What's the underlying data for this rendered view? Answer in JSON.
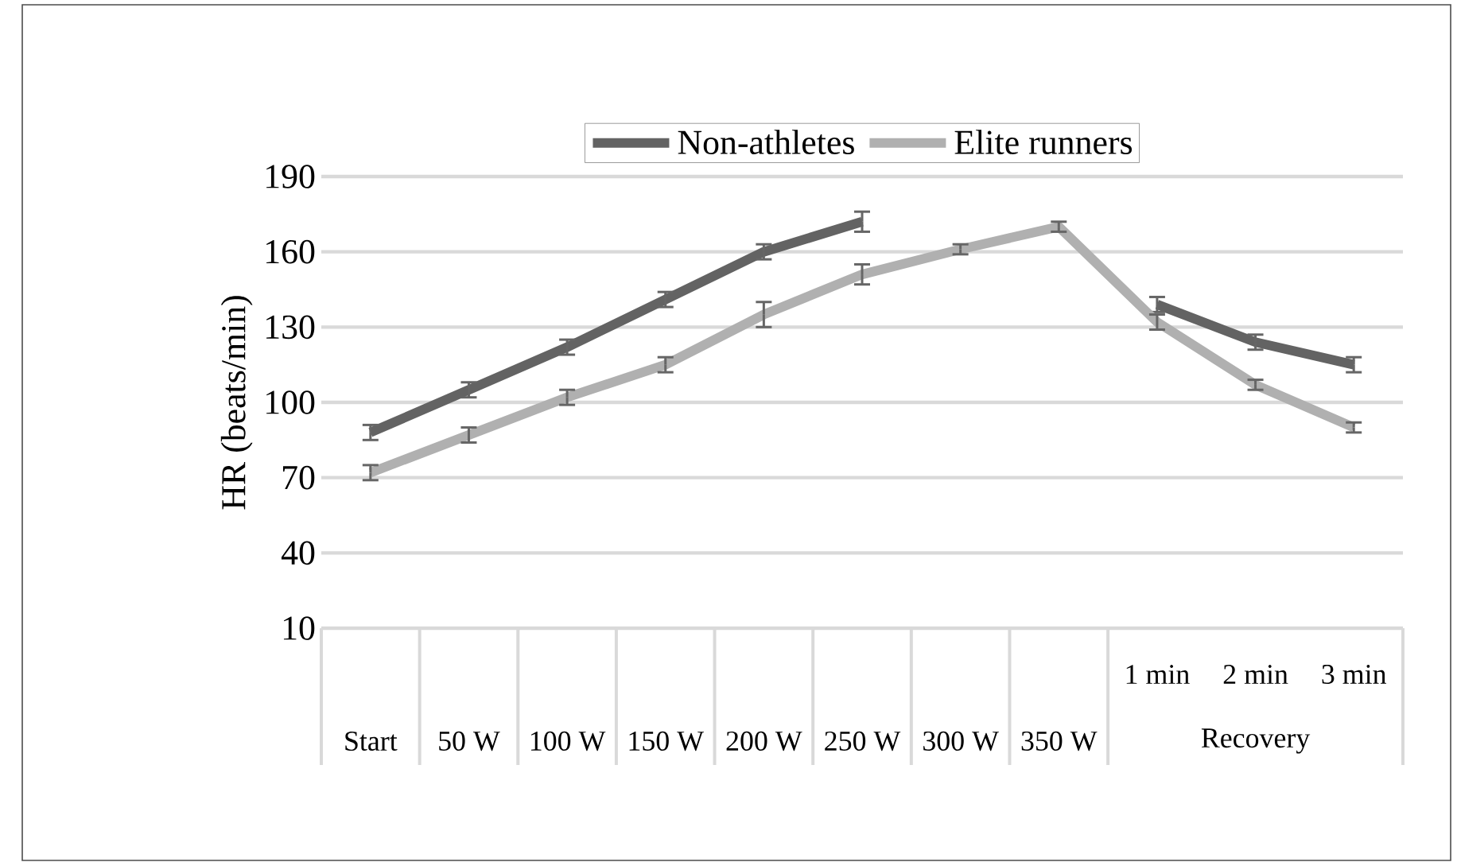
{
  "chart_data": {
    "type": "line",
    "ylabel": "HR (beats/min)",
    "categories": [
      "Start",
      "50 W",
      "100 W",
      "150 W",
      "200 W",
      "250 W",
      "300 W",
      "350 W",
      "1 min",
      "2 min",
      "3 min"
    ],
    "series": [
      {
        "name": "Non-athletes",
        "color": "#636363",
        "values": [
          88,
          105,
          122,
          141,
          160,
          172,
          null,
          null,
          139,
          124,
          115
        ],
        "errors": [
          3,
          3,
          3,
          3,
          3,
          4,
          null,
          null,
          3,
          3,
          3
        ]
      },
      {
        "name": "Elite runners",
        "color": "#b0b0b0",
        "values": [
          72,
          87,
          102,
          115,
          135,
          151,
          161,
          170,
          132,
          107,
          90
        ],
        "errors": [
          3,
          3,
          3,
          3,
          5,
          4,
          2,
          2,
          3,
          2,
          2
        ]
      }
    ],
    "ylim": [
      10,
      190
    ],
    "yticks": [
      10,
      40,
      70,
      100,
      130,
      160,
      190
    ],
    "grid": "y",
    "legend": "top",
    "annotations": [
      "Recovery"
    ]
  }
}
